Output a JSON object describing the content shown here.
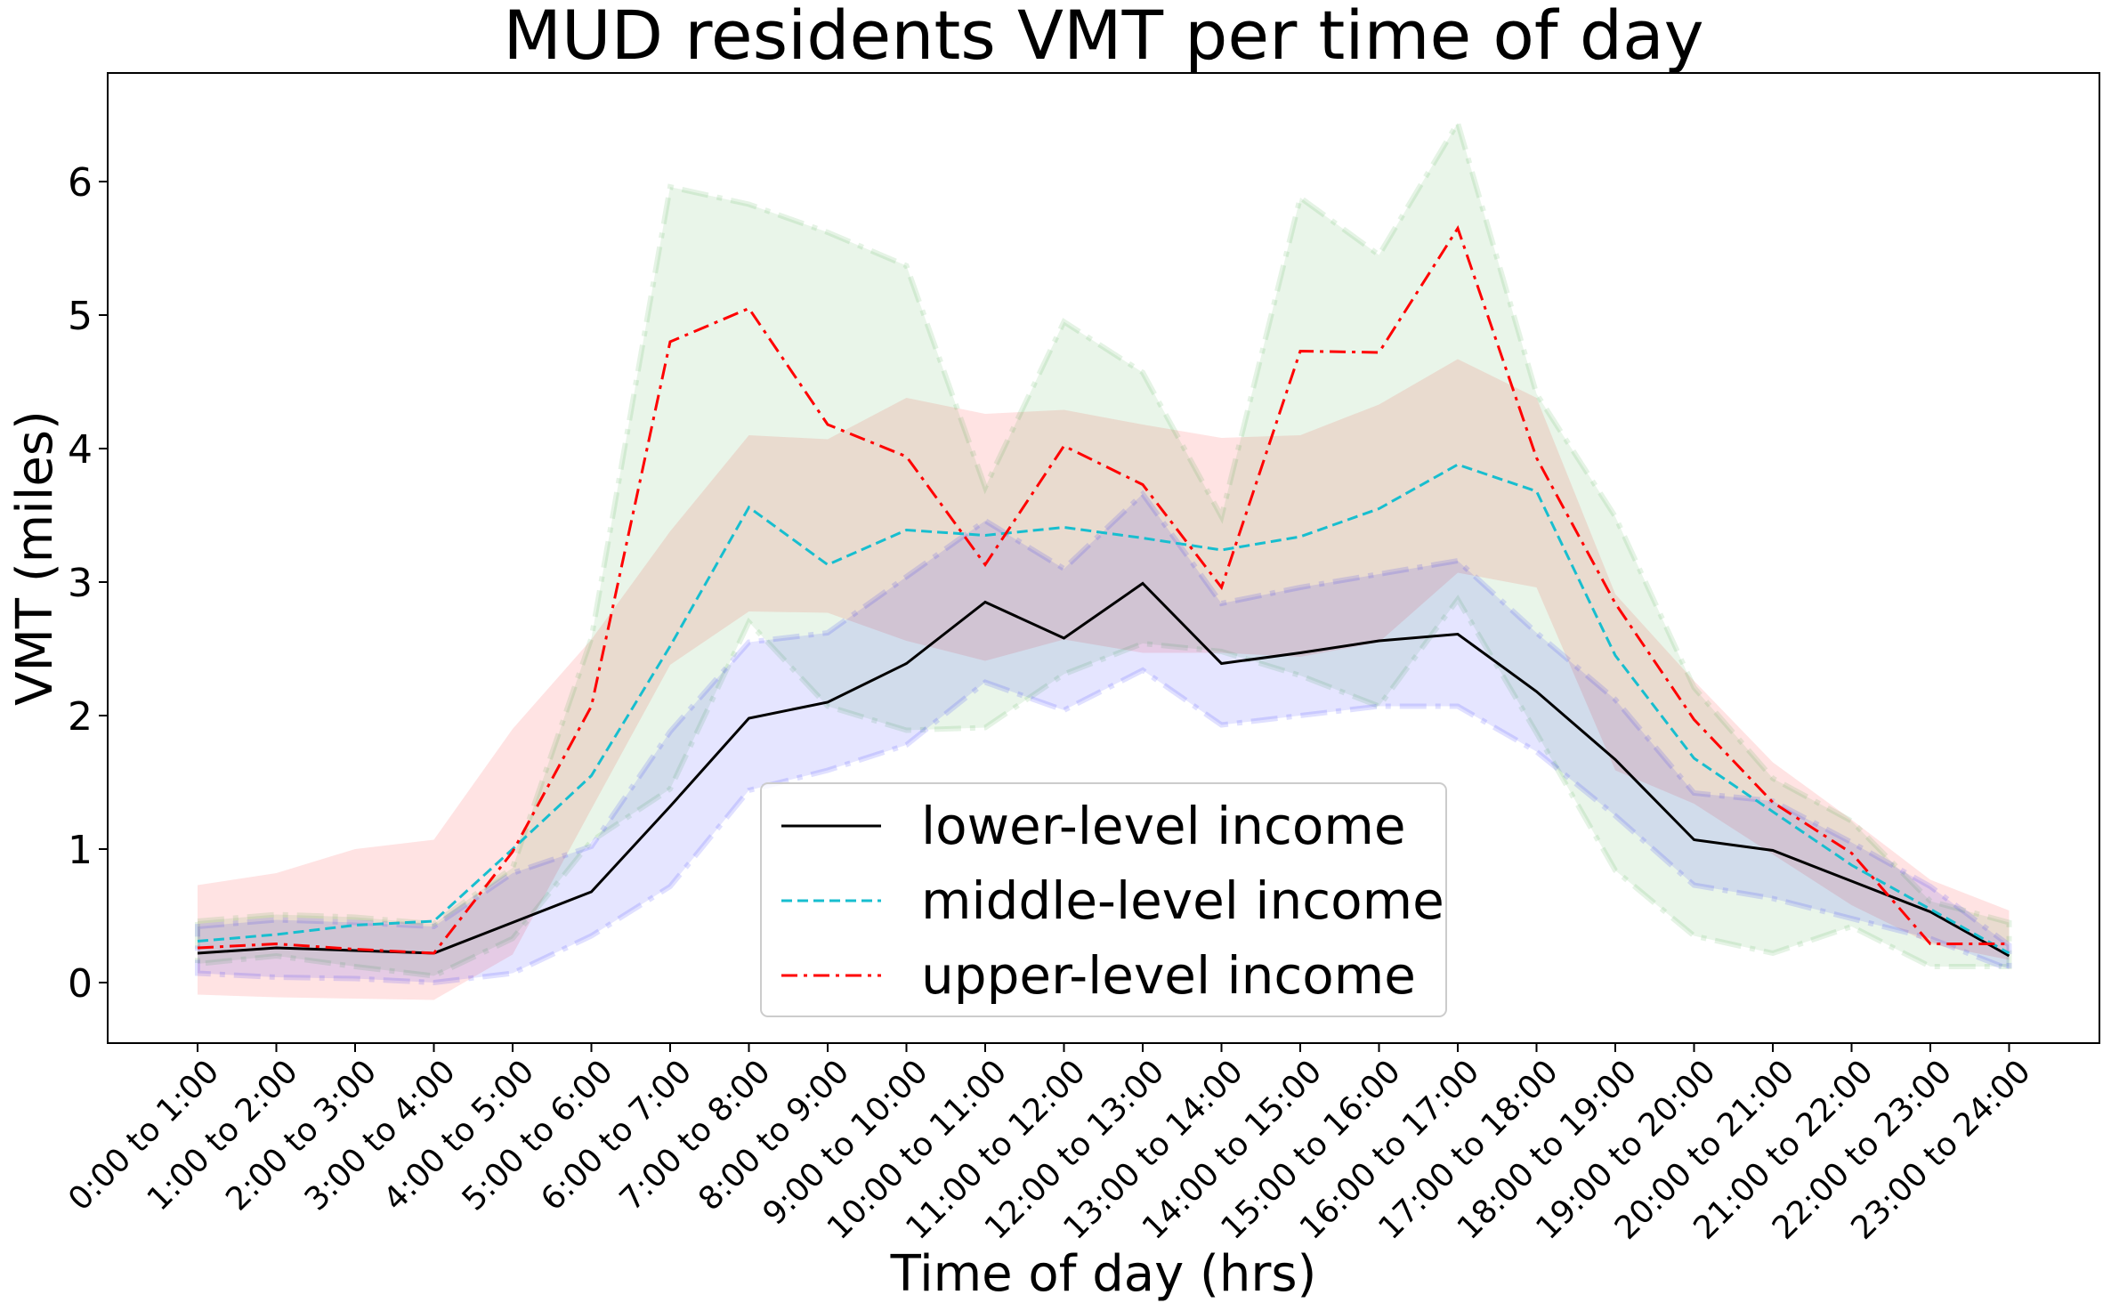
{
  "chart_data": {
    "type": "line",
    "title": "MUD residents VMT per time of day",
    "xlabel": "Time of day (hrs)",
    "ylabel": "VMT (miles)",
    "ylim": [
      -0.45,
      6.8
    ],
    "yticks": [
      0,
      1,
      2,
      3,
      4,
      5,
      6
    ],
    "grid": false,
    "legend_position": "lower center",
    "categories": [
      "0:00 to 1:00",
      "1:00 to 2:00",
      "2:00 to 3:00",
      "3:00 to 4:00",
      "4:00 to 5:00",
      "5:00 to 6:00",
      "6:00 to 7:00",
      "7:00 to 8:00",
      "8:00 to 9:00",
      "9:00 to 10:00",
      "10:00 to 11:00",
      "11:00 to 12:00",
      "12:00 to 13:00",
      "13:00 to 14:00",
      "14:00 to 15:00",
      "15:00 to 16:00",
      "16:00 to 17:00",
      "17:00 to 18:00",
      "18:00 to 19:00",
      "19:00 to 20:00",
      "20:00 to 21:00",
      "21:00 to 22:00",
      "22:00 to 23:00",
      "23:00 to 24:00"
    ],
    "series": [
      {
        "name": "lower-level income",
        "color": "#000000",
        "line_style": "solid",
        "band_color": "#0000ff",
        "values": [
          0.22,
          0.26,
          0.24,
          0.22,
          0.45,
          0.68,
          1.32,
          1.98,
          2.1,
          2.39,
          2.85,
          2.58,
          2.99,
          2.39,
          2.47,
          2.56,
          2.61,
          2.18,
          1.67,
          1.07,
          0.99,
          0.76,
          0.53,
          0.2
        ],
        "lower": [
          0.07,
          0.04,
          0.03,
          0.0,
          0.07,
          0.35,
          0.72,
          1.44,
          1.59,
          1.78,
          2.25,
          2.04,
          2.34,
          1.93,
          2.0,
          2.07,
          2.07,
          1.73,
          1.25,
          0.73,
          0.63,
          0.48,
          0.33,
          0.1
        ],
        "upper": [
          0.42,
          0.47,
          0.45,
          0.42,
          0.82,
          1.02,
          1.88,
          2.55,
          2.62,
          3.04,
          3.46,
          3.1,
          3.66,
          2.84,
          2.96,
          3.06,
          3.16,
          2.62,
          2.12,
          1.42,
          1.36,
          1.05,
          0.72,
          0.28
        ]
      },
      {
        "name": "middle-level income",
        "color": "#17becf",
        "line_style": "dashed",
        "band_color": "#2ca02c",
        "values": [
          0.31,
          0.36,
          0.43,
          0.46,
          1.0,
          1.55,
          2.52,
          3.56,
          3.13,
          3.39,
          3.35,
          3.41,
          3.33,
          3.24,
          3.34,
          3.55,
          3.88,
          3.68,
          2.45,
          1.68,
          1.28,
          0.88,
          0.55,
          0.22
        ],
        "lower": [
          0.14,
          0.2,
          0.12,
          0.05,
          0.33,
          1.06,
          1.45,
          2.7,
          2.07,
          1.89,
          1.91,
          2.31,
          2.54,
          2.48,
          2.3,
          2.07,
          2.87,
          1.87,
          0.84,
          0.35,
          0.22,
          0.42,
          0.12,
          0.12
        ],
        "upper": [
          0.46,
          0.51,
          0.49,
          0.44,
          0.86,
          2.58,
          5.96,
          5.83,
          5.62,
          5.37,
          3.71,
          4.95,
          4.57,
          3.49,
          5.88,
          5.45,
          6.44,
          4.41,
          3.49,
          2.21,
          1.53,
          1.21,
          0.61,
          0.45
        ]
      },
      {
        "name": "upper-level income",
        "color": "#ff0000",
        "line_style": "dashdot",
        "band_color": "#ff9999",
        "values": [
          0.26,
          0.29,
          0.25,
          0.22,
          0.98,
          2.07,
          4.8,
          5.05,
          4.18,
          3.94,
          3.13,
          4.02,
          3.73,
          2.96,
          4.73,
          4.72,
          5.65,
          3.93,
          2.84,
          1.97,
          1.35,
          0.97,
          0.29,
          0.29
        ],
        "lower": [
          -0.09,
          -0.11,
          -0.12,
          -0.13,
          0.21,
          1.3,
          2.38,
          2.78,
          2.77,
          2.56,
          2.41,
          2.57,
          2.47,
          2.47,
          2.44,
          2.55,
          3.07,
          2.96,
          1.59,
          1.34,
          0.96,
          0.58,
          0.29,
          0.17
        ],
        "upper": [
          0.73,
          0.82,
          1.0,
          1.07,
          1.9,
          2.57,
          3.38,
          4.1,
          4.07,
          4.38,
          4.26,
          4.29,
          4.18,
          4.08,
          4.1,
          4.33,
          4.67,
          4.38,
          2.91,
          2.26,
          1.65,
          1.22,
          0.77,
          0.54
        ]
      }
    ]
  }
}
